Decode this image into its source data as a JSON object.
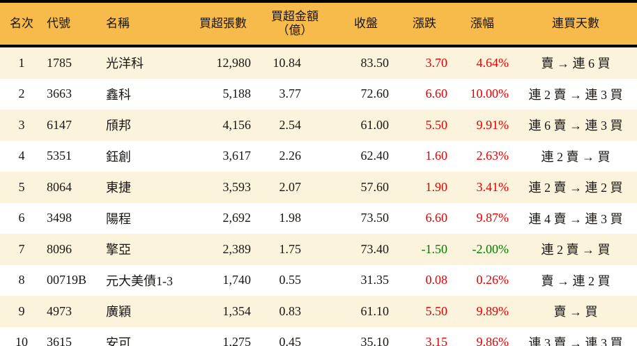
{
  "chart_data": {
    "type": "table",
    "headers": {
      "rank": "名次",
      "code": "代號",
      "name": "名稱",
      "volume": "買超張數",
      "amount_line1": "買超金額",
      "amount_line2": "（億）",
      "close": "收盤",
      "change": "漲跌",
      "change_pct": "漲幅",
      "streak": "連買天數"
    },
    "column_keys": [
      "rank",
      "code",
      "name",
      "volume",
      "amount",
      "close",
      "change",
      "change_pct",
      "streak"
    ],
    "rows": [
      {
        "rank": "1",
        "code": "1785",
        "name": "光洋科",
        "volume": "12,980",
        "amount": "10.84",
        "close": "83.50",
        "change": "3.70",
        "change_pct": "4.64%",
        "streak": "賣 → 連 6 買",
        "trend": "up"
      },
      {
        "rank": "2",
        "code": "3663",
        "name": "鑫科",
        "volume": "5,188",
        "amount": "3.77",
        "close": "72.60",
        "change": "6.60",
        "change_pct": "10.00%",
        "streak": "連 2 賣 → 連 3 買",
        "trend": "up"
      },
      {
        "rank": "3",
        "code": "6147",
        "name": "頎邦",
        "volume": "4,156",
        "amount": "2.54",
        "close": "61.00",
        "change": "5.50",
        "change_pct": "9.91%",
        "streak": "連 6 賣 → 連 3 買",
        "trend": "up"
      },
      {
        "rank": "4",
        "code": "5351",
        "name": "鈺創",
        "volume": "3,617",
        "amount": "2.26",
        "close": "62.40",
        "change": "1.60",
        "change_pct": "2.63%",
        "streak": "連 2 賣 → 買",
        "trend": "up"
      },
      {
        "rank": "5",
        "code": "8064",
        "name": "東捷",
        "volume": "3,593",
        "amount": "2.07",
        "close": "57.60",
        "change": "1.90",
        "change_pct": "3.41%",
        "streak": "連 2 賣 → 連 2 買",
        "trend": "up"
      },
      {
        "rank": "6",
        "code": "3498",
        "name": "陽程",
        "volume": "2,692",
        "amount": "1.98",
        "close": "73.50",
        "change": "6.60",
        "change_pct": "9.87%",
        "streak": "連 4 賣 → 連 3 買",
        "trend": "up"
      },
      {
        "rank": "7",
        "code": "8096",
        "name": "擎亞",
        "volume": "2,389",
        "amount": "1.75",
        "close": "73.40",
        "change": "-1.50",
        "change_pct": "-2.00%",
        "streak": "連 2 賣 → 買",
        "trend": "down"
      },
      {
        "rank": "8",
        "code": "00719B",
        "name": "元大美債1-3",
        "volume": "1,740",
        "amount": "0.55",
        "close": "31.35",
        "change": "0.08",
        "change_pct": "0.26%",
        "streak": "賣 → 連 2 買",
        "trend": "up"
      },
      {
        "rank": "9",
        "code": "4973",
        "name": "廣穎",
        "volume": "1,354",
        "amount": "0.83",
        "close": "61.10",
        "change": "5.50",
        "change_pct": "9.89%",
        "streak": "賣 → 買",
        "trend": "up"
      },
      {
        "rank": "10",
        "code": "3615",
        "name": "安可",
        "volume": "1,275",
        "amount": "0.45",
        "close": "35.10",
        "change": "3.15",
        "change_pct": "9.86%",
        "streak": "連 3 賣 → 連 3 買",
        "trend": "up"
      }
    ]
  },
  "colors": {
    "header_bg": "#F6BB4A",
    "stripe_bg": "#FBF3DC",
    "up_red": "#E50000",
    "down_green": "#007B00",
    "rule_black": "#000000"
  }
}
